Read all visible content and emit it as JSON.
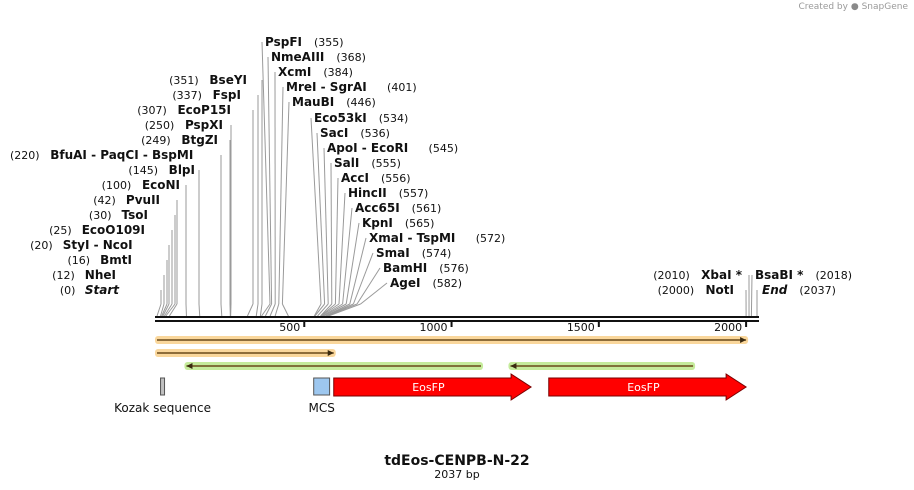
{
  "branding": {
    "created_by": "Created by",
    "product": "SnapGene"
  },
  "map": {
    "name": "tdEos-CENPB-N-22",
    "length_label": "2037 bp",
    "length": 2037
  },
  "ruler": {
    "ticks": [
      {
        "pos": 500,
        "label": "500"
      },
      {
        "pos": 1000,
        "label": "1000"
      },
      {
        "pos": 1500,
        "label": "1500"
      },
      {
        "pos": 2000,
        "label": "2000"
      }
    ]
  },
  "sites_left": [
    {
      "pos": 0,
      "pos_label": "(0)",
      "parts": [
        "Start"
      ],
      "italic": true
    },
    {
      "pos": 12,
      "pos_label": "(12)",
      "parts": [
        "NheI"
      ]
    },
    {
      "pos": 16,
      "pos_label": "(16)",
      "parts": [
        "BmtI"
      ]
    },
    {
      "pos": 20,
      "pos_label": "(20)",
      "parts": [
        "StyI",
        "NcoI"
      ]
    },
    {
      "pos": 25,
      "pos_label": "(25)",
      "parts": [
        "EcoO109I"
      ]
    },
    {
      "pos": 30,
      "pos_label": "(30)",
      "parts": [
        "TsoI"
      ]
    },
    {
      "pos": 42,
      "pos_label": "(42)",
      "parts": [
        "PvuII"
      ]
    },
    {
      "pos": 100,
      "pos_label": "(100)",
      "parts": [
        "EcoNI"
      ]
    },
    {
      "pos": 145,
      "pos_label": "(145)",
      "parts": [
        "BlpI"
      ]
    },
    {
      "pos": 220,
      "pos_label": "(220)",
      "parts": [
        "BfuAI",
        "PaqCI",
        "BspMI"
      ]
    },
    {
      "pos": 249,
      "pos_label": "(249)",
      "parts": [
        "BtgZI"
      ]
    },
    {
      "pos": 250,
      "pos_label": "(250)",
      "parts": [
        "PspXI"
      ]
    },
    {
      "pos": 307,
      "pos_label": "(307)",
      "parts": [
        "EcoP15I"
      ]
    },
    {
      "pos": 337,
      "pos_label": "(337)",
      "parts": [
        "FspI"
      ]
    },
    {
      "pos": 351,
      "pos_label": "(351)",
      "parts": [
        "BseYI"
      ]
    }
  ],
  "sites_right": [
    {
      "pos": 355,
      "pos_label": "(355)",
      "parts": [
        "PspFI"
      ]
    },
    {
      "pos": 368,
      "pos_label": "(368)",
      "parts": [
        "NmeAIII"
      ]
    },
    {
      "pos": 384,
      "pos_label": "(384)",
      "parts": [
        "XcmI"
      ]
    },
    {
      "pos": 401,
      "pos_label": "(401)",
      "parts": [
        "MreI",
        "SgrAI"
      ]
    },
    {
      "pos": 446,
      "pos_label": "(446)",
      "parts": [
        "MauBI"
      ]
    },
    {
      "pos": 534,
      "pos_label": "(534)",
      "parts": [
        "Eco53kI"
      ]
    },
    {
      "pos": 536,
      "pos_label": "(536)",
      "parts": [
        "SacI"
      ]
    },
    {
      "pos": 545,
      "pos_label": "(545)",
      "parts": [
        "ApoI",
        "EcoRI"
      ]
    },
    {
      "pos": 555,
      "pos_label": "(555)",
      "parts": [
        "SalI"
      ]
    },
    {
      "pos": 556,
      "pos_label": "(556)",
      "parts": [
        "AccI"
      ]
    },
    {
      "pos": 557,
      "pos_label": "(557)",
      "parts": [
        "HincII"
      ]
    },
    {
      "pos": 561,
      "pos_label": "(561)",
      "parts": [
        "Acc65I"
      ]
    },
    {
      "pos": 565,
      "pos_label": "(565)",
      "parts": [
        "KpnI"
      ]
    },
    {
      "pos": 572,
      "pos_label": "(572)",
      "parts": [
        "XmaI",
        "TspMI"
      ]
    },
    {
      "pos": 574,
      "pos_label": "(574)",
      "parts": [
        "SmaI"
      ]
    },
    {
      "pos": 576,
      "pos_label": "(576)",
      "parts": [
        "BamHI"
      ]
    },
    {
      "pos": 582,
      "pos_label": "(582)",
      "parts": [
        "AgeI"
      ]
    }
  ],
  "sites_far_left": [
    {
      "pos": 2010,
      "pos_label": "(2010)",
      "parts": [
        "XbaI *"
      ]
    },
    {
      "pos": 2000,
      "pos_label": "(2000)",
      "parts": [
        "NotI"
      ]
    }
  ],
  "sites_far_right": [
    {
      "pos": 2018,
      "pos_label": "(2018)",
      "parts": [
        "BsaBI *"
      ]
    },
    {
      "pos": 2037,
      "pos_label": "(2037)",
      "parts": [
        "End"
      ],
      "italic": true
    }
  ],
  "orfs": [
    {
      "start": 0,
      "end": 2000,
      "strand": "+",
      "color": "#f5a623"
    },
    {
      "start": 0,
      "end": 600,
      "strand": "+",
      "color": "#f5a623"
    },
    {
      "start": 100,
      "end": 1100,
      "strand": "-",
      "color": "#7ed321"
    },
    {
      "start": 1200,
      "end": 1820,
      "strand": "-",
      "color": "#7ed321"
    }
  ],
  "features": [
    {
      "name": "Kozak sequence",
      "start": 12,
      "end": 22,
      "type": "box",
      "color": "#c0c0c0",
      "label_below": true
    },
    {
      "name": "MCS",
      "start": 532,
      "end": 586,
      "type": "box",
      "color": "#9dc7ef",
      "label_below": true
    },
    {
      "name": "EosFP",
      "start": 600,
      "end": 1270,
      "type": "arrow",
      "color": "#ff0000"
    },
    {
      "name": "EosFP",
      "start": 1330,
      "end": 2000,
      "type": "arrow",
      "color": "#ff0000"
    }
  ]
}
